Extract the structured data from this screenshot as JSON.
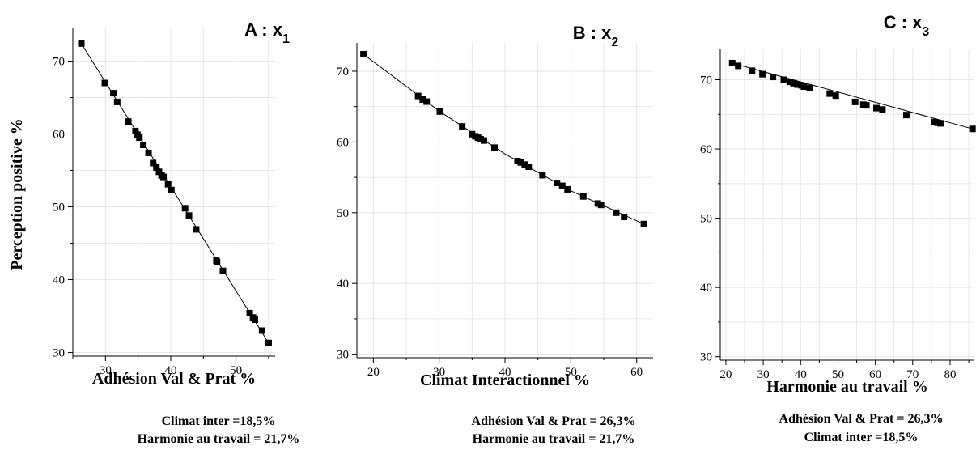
{
  "shared_ylabel": "Perception positive  %",
  "chart_data": [
    {
      "type": "scatter",
      "title": "A : x",
      "title_sub": "1",
      "xlabel": "Adhésion Val & Prat %",
      "ylabel": "Perception positive  %",
      "xlim": [
        25,
        56
      ],
      "ylim": [
        29.5,
        74.5
      ],
      "xticks": [
        30,
        40,
        50
      ],
      "yticks": [
        30,
        40,
        50,
        60,
        70
      ],
      "grid": true,
      "notes": [
        "Climat inter =18,5%",
        "Harmonie au travail = 21,7%"
      ],
      "x": [
        26.3,
        29.9,
        31.2,
        31.8,
        33.5,
        34.6,
        34.9,
        35.2,
        35.8,
        36.6,
        37.3,
        37.8,
        38.2,
        38.6,
        38.9,
        39.6,
        40.1,
        42.2,
        42.8,
        43.9,
        47.0,
        47.1,
        48.0,
        52.1,
        52.6,
        52.9,
        54.0,
        55.0
      ],
      "y": [
        72.4,
        67.0,
        65.6,
        64.4,
        61.7,
        60.4,
        59.9,
        59.5,
        58.5,
        57.4,
        56.0,
        55.4,
        54.8,
        54.3,
        54.1,
        53.1,
        52.3,
        49.8,
        48.8,
        46.9,
        42.6,
        42.4,
        41.2,
        35.4,
        34.8,
        34.5,
        33.0,
        31.3
      ],
      "fit": [
        [
          26.3,
          72.4
        ],
        [
          55.0,
          31.3
        ]
      ]
    },
    {
      "type": "scatter",
      "title": "B : x",
      "title_sub": "2",
      "xlabel": "Climat Interactionnel %",
      "ylabel": "",
      "xlim": [
        17.5,
        62.5
      ],
      "ylim": [
        29.5,
        74.0
      ],
      "xticks": [
        20,
        30,
        40,
        50,
        60
      ],
      "yticks": [
        30,
        40,
        50,
        60,
        70
      ],
      "grid": true,
      "notes": [
        "Adhésion Val & Prat = 26,3%",
        "Harmonie au travail = 21,7%"
      ],
      "x": [
        18.5,
        26.8,
        27.5,
        28.1,
        30.1,
        33.5,
        35.0,
        35.5,
        35.9,
        36.3,
        36.8,
        38.4,
        41.9,
        42.4,
        43.0,
        43.6,
        45.7,
        47.9,
        48.7,
        49.5,
        51.9,
        54.1,
        54.6,
        56.9,
        58.1,
        61.1
      ],
      "y": [
        72.4,
        66.5,
        66.0,
        65.7,
        64.3,
        62.2,
        61.1,
        60.8,
        60.6,
        60.4,
        60.2,
        59.2,
        57.3,
        57.1,
        56.8,
        56.5,
        55.3,
        54.2,
        53.8,
        53.3,
        52.3,
        51.3,
        51.1,
        50.0,
        49.4,
        48.4
      ],
      "fit": [
        [
          18.5,
          72.4
        ],
        [
          30.1,
          64.3
        ],
        [
          40.0,
          58.3
        ],
        [
          50.0,
          53.1
        ],
        [
          61.1,
          48.4
        ]
      ]
    },
    {
      "type": "scatter",
      "title": "C : x",
      "title_sub": "3",
      "xlabel": "Harmonie au travail %",
      "ylabel": "",
      "xlim": [
        18.5,
        86.5
      ],
      "ylim": [
        29.5,
        74.5
      ],
      "xticks": [
        20,
        30,
        40,
        50,
        60,
        70,
        80
      ],
      "yticks": [
        30,
        40,
        50,
        60,
        70
      ],
      "grid": true,
      "notes": [
        "Adhésion Val & Prat = 26,3%",
        "Climat inter =18,5%"
      ],
      "x": [
        21.7,
        23.3,
        27.0,
        29.8,
        32.6,
        35.5,
        37.1,
        38.1,
        39.1,
        40.2,
        40.9,
        42.4,
        47.8,
        49.4,
        54.6,
        56.8,
        57.6,
        60.3,
        61.9,
        68.3,
        75.8,
        76.5,
        77.4,
        86.0
      ],
      "y": [
        72.4,
        72.0,
        71.3,
        70.8,
        70.4,
        70.0,
        69.7,
        69.5,
        69.3,
        69.2,
        69.0,
        68.8,
        68.0,
        67.7,
        66.8,
        66.4,
        66.3,
        65.9,
        65.7,
        64.9,
        63.9,
        63.8,
        63.7,
        62.9
      ],
      "fit": [
        [
          21.7,
          72.4
        ],
        [
          86.0,
          62.9
        ]
      ]
    }
  ]
}
